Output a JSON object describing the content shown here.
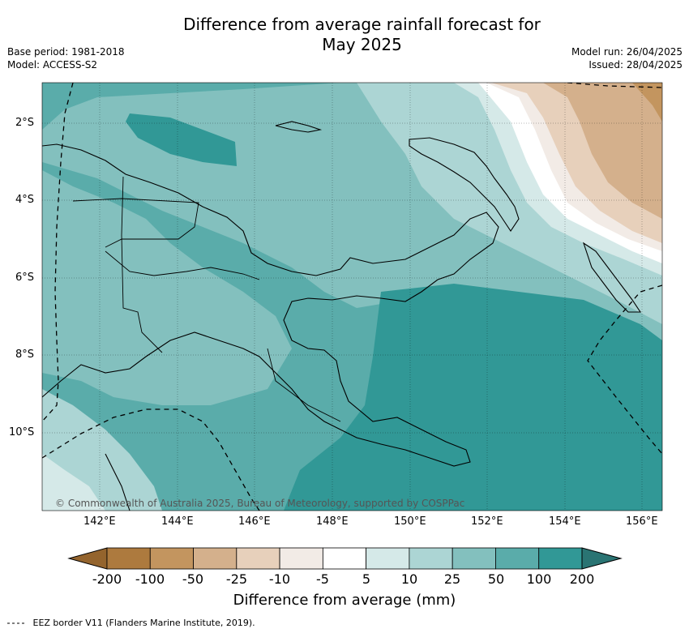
{
  "title_line1": "Difference from average rainfall forecast for",
  "title_line2": "May 2025",
  "base_period": "Base period: 1981-2018",
  "model": "Model: ACCESS-S2",
  "model_run": "Model run: 26/04/2025",
  "issued": "Issued: 28/04/2025",
  "copyright": "© Commonwealth of Australia 2025, Bureau of Meteorology, supported by COSPPac",
  "lat_ticks": [
    "2°S",
    "4°S",
    "6°S",
    "8°S",
    "10°S"
  ],
  "lon_ticks": [
    "142°E",
    "144°E",
    "146°E",
    "148°E",
    "150°E",
    "152°E",
    "154°E",
    "156°E"
  ],
  "colorbar": {
    "labels": [
      "-200",
      "-100",
      "-50",
      "-25",
      "-10",
      "-5",
      "5",
      "10",
      "25",
      "50",
      "100",
      "200"
    ],
    "colors": [
      "#ad7a3e",
      "#c3955f",
      "#d4b08c",
      "#e7d0bb",
      "#f2ebe6",
      "#ffffff",
      "#d5e9e8",
      "#acd5d4",
      "#83c0be",
      "#5aacaa",
      "#319896"
    ],
    "under_color": "#94642d",
    "over_color": "#2a7473",
    "title": "Difference from average (mm)"
  },
  "legend_line": "EEZ border V11 (Flanders Marine Institute, 2019).",
  "legend_line_style": "dashed"
}
